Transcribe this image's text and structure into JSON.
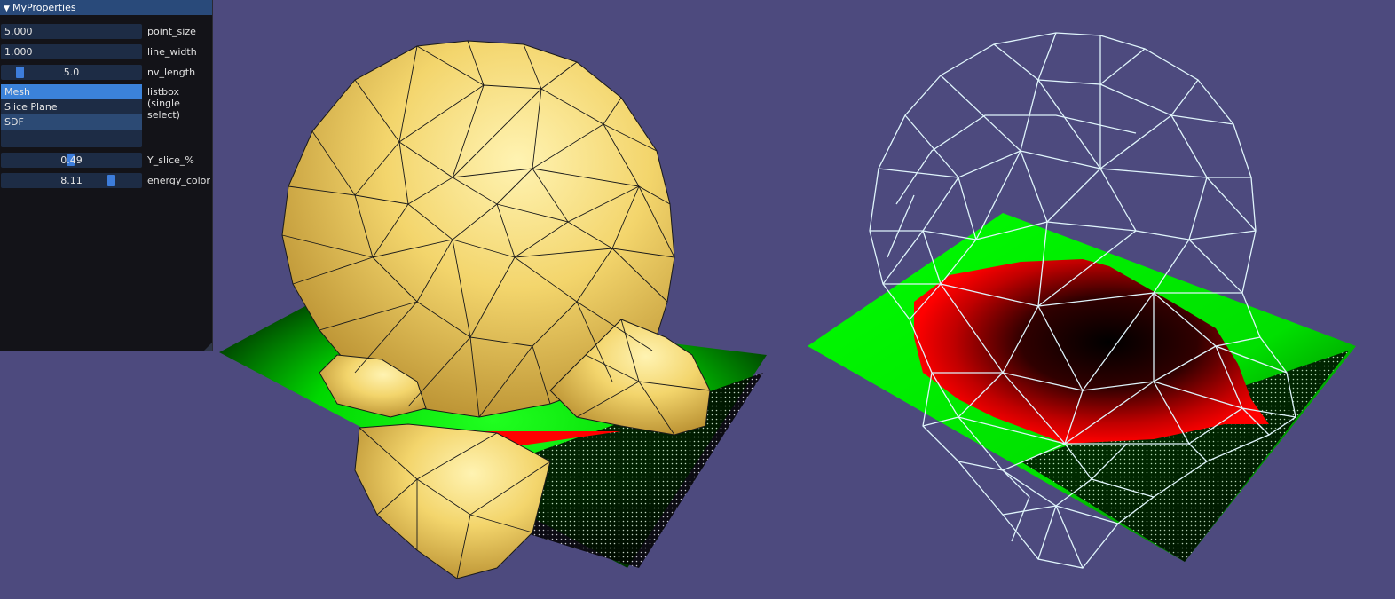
{
  "panel": {
    "title": "MyProperties",
    "point_size": {
      "value": "5.000",
      "label": "point_size"
    },
    "line_width": {
      "value": "1.000",
      "label": "line_width"
    },
    "nv_length": {
      "value": "5.0",
      "label": "nv_length",
      "fraction": 0.1
    },
    "listbox": {
      "label_line1": "listbox",
      "label_line2": "(single select)",
      "items": [
        "Mesh",
        "Slice Plane",
        "SDF"
      ],
      "selected": "Mesh"
    },
    "y_slice": {
      "value": "0.49",
      "label": "Y_slice_%",
      "fraction": 0.49
    },
    "energy_color": {
      "value": "8.11",
      "label": "energy_color",
      "fraction": 0.81
    }
  },
  "scene": {
    "background": "#4d4a7e",
    "mesh_fill": "#f3d56c",
    "wire_color": "#dff4fb",
    "slice_colors": [
      "#00ff00",
      "#ff0000",
      "#000000"
    ]
  }
}
